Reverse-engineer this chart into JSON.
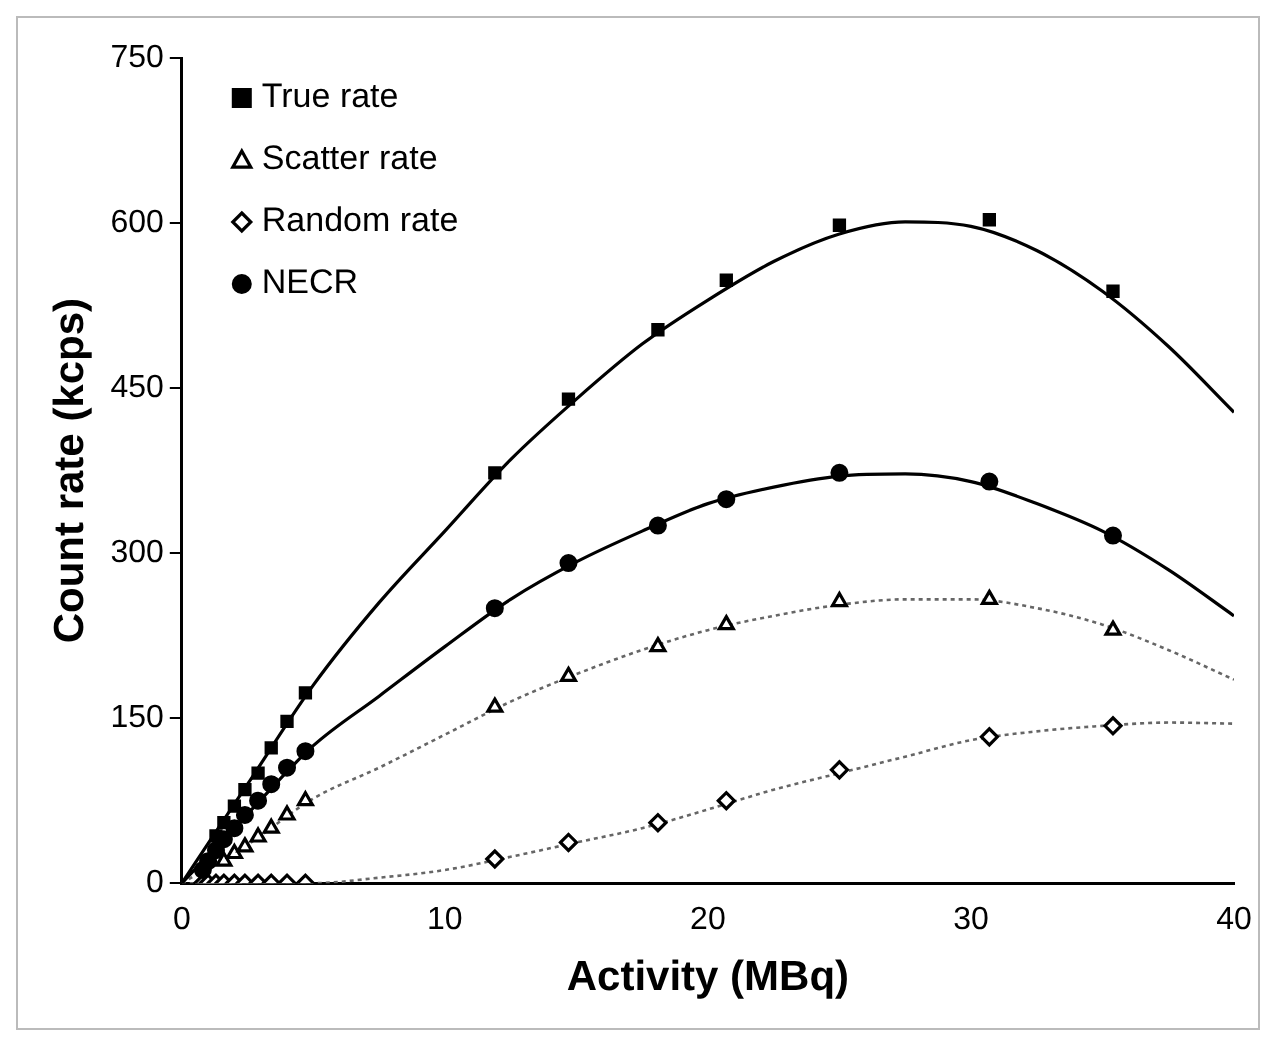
{
  "chart_data": {
    "type": "scatter",
    "xlabel": "Activity (MBq)",
    "ylabel": "Count rate (kcps)",
    "xlim": [
      0,
      40
    ],
    "xticks": [
      0,
      10,
      20,
      30,
      40
    ],
    "ylim": [
      0,
      750
    ],
    "yticks": [
      0,
      150,
      300,
      450,
      600,
      750
    ],
    "grid": false,
    "legend": "top left",
    "series": [
      {
        "name": "True rate",
        "marker": "square",
        "color": "#000000",
        "x": [
          1.3,
          1.6,
          2.0,
          2.4,
          2.9,
          3.4,
          4.0,
          4.7,
          11.9,
          14.7,
          18.1,
          20.7,
          25.0,
          30.7,
          35.4
        ],
        "values": [
          43,
          55,
          70,
          85,
          100,
          123,
          147,
          173,
          373,
          440,
          503,
          548,
          598,
          603,
          538
        ]
      },
      {
        "name": "Scatter rate",
        "marker": "triangle",
        "color": "#000000",
        "x": [
          1.6,
          2.0,
          2.4,
          2.9,
          3.4,
          4.0,
          4.7,
          11.9,
          14.7,
          18.1,
          20.7,
          25.0,
          30.7,
          35.4
        ],
        "values": [
          20,
          27,
          33,
          42,
          50,
          62,
          75,
          160,
          188,
          215,
          235,
          256,
          258,
          230
        ]
      },
      {
        "name": "Random rate",
        "marker": "diamond",
        "color": "#000000",
        "x": [
          0.8,
          1.0,
          1.3,
          1.6,
          2.0,
          2.4,
          2.9,
          3.4,
          4.0,
          4.7,
          11.9,
          14.7,
          18.1,
          20.7,
          25.0,
          30.7,
          35.4
        ],
        "values": [
          0,
          0,
          0,
          0,
          0,
          0,
          0,
          0,
          0,
          0,
          22,
          37,
          55,
          75,
          103,
          133,
          143
        ]
      },
      {
        "name": "NECR",
        "marker": "circle",
        "color": "#000000",
        "x": [
          0.8,
          1.0,
          1.3,
          1.6,
          2.0,
          2.4,
          2.9,
          3.4,
          4.0,
          4.7,
          11.9,
          14.7,
          18.1,
          20.7,
          25.0,
          30.7,
          35.4
        ],
        "values": [
          12,
          20,
          30,
          40,
          50,
          62,
          75,
          90,
          105,
          120,
          250,
          291,
          325,
          349,
          373,
          365,
          316
        ]
      },
      {
        "type": "line",
        "marker": "none",
        "line_style": "solid",
        "color": "#000000",
        "x": [
          0,
          2.5,
          5,
          7.5,
          10,
          12.5,
          15,
          17.5,
          20,
          22.5,
          25,
          27.5,
          30,
          32.5,
          35,
          37.5,
          40
        ],
        "values": [
          0,
          90,
          180,
          255,
          320,
          385,
          440,
          490,
          530,
          565,
          590,
          601,
          597,
          575,
          538,
          488,
          428
        ]
      },
      {
        "type": "line",
        "marker": "none",
        "line_style": "solid",
        "color": "#000000",
        "x": [
          0,
          2.5,
          5,
          7.5,
          10,
          12.5,
          15,
          17.5,
          20,
          22.5,
          25,
          27.5,
          30,
          32.5,
          35,
          37.5,
          40
        ],
        "values": [
          0,
          63,
          125,
          170,
          215,
          258,
          292,
          320,
          345,
          360,
          370,
          372,
          365,
          345,
          320,
          285,
          243
        ]
      },
      {
        "type": "line",
        "marker": "none",
        "line_style": "dotted",
        "color": "#666666",
        "x": [
          0,
          2.5,
          5,
          7.5,
          10,
          12.5,
          15,
          17.5,
          20,
          22.5,
          25,
          27.5,
          30,
          32.5,
          35,
          37.5,
          40
        ],
        "values": [
          0,
          35,
          77,
          105,
          135,
          165,
          190,
          212,
          230,
          243,
          253,
          258,
          258,
          250,
          235,
          212,
          185
        ]
      },
      {
        "type": "line",
        "marker": "none",
        "line_style": "dotted",
        "color": "#666666",
        "x": [
          0,
          5,
          7.5,
          10,
          12.5,
          15,
          17.5,
          20,
          22.5,
          25,
          27.5,
          30,
          32.5,
          35,
          37.5,
          40
        ],
        "values": [
          0,
          0,
          5,
          12,
          24,
          37,
          50,
          67,
          85,
          100,
          115,
          130,
          138,
          143,
          146,
          145
        ]
      }
    ]
  }
}
